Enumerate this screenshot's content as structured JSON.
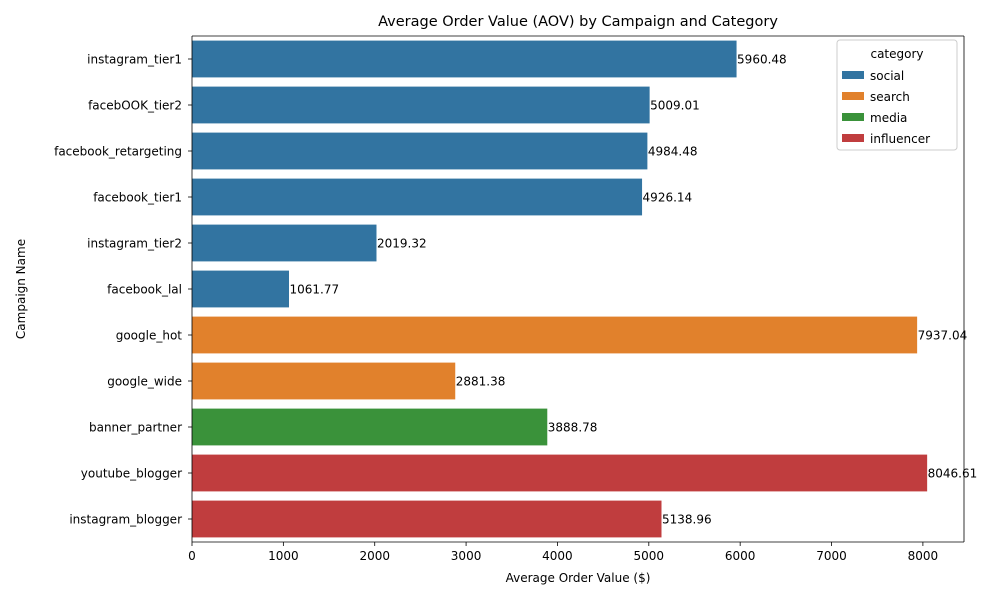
{
  "chart_data": {
    "type": "bar",
    "orientation": "horizontal",
    "title": "Average Order Value (AOV) by Campaign and Category",
    "xlabel": "Average Order Value ($)",
    "ylabel": "Campaign Name",
    "xlim": [
      0,
      8450
    ],
    "xticks": [
      0,
      1000,
      2000,
      3000,
      4000,
      5000,
      6000,
      7000,
      8000
    ],
    "grid": false,
    "legend": {
      "title": "category",
      "placement": "top-right",
      "entries": [
        {
          "name": "social",
          "color": "#3274a1"
        },
        {
          "name": "search",
          "color": "#e1812c"
        },
        {
          "name": "media",
          "color": "#3a923a"
        },
        {
          "name": "influencer",
          "color": "#c03d3e"
        }
      ]
    },
    "bars": [
      {
        "category_label": "instagram_tier1",
        "value": 5960.48,
        "value_label": "5960.48",
        "group": "social"
      },
      {
        "category_label": "facebOOK_tier2",
        "value": 5009.01,
        "value_label": "5009.01",
        "group": "social"
      },
      {
        "category_label": "facebook_retargeting",
        "value": 4984.48,
        "value_label": "4984.48",
        "group": "social"
      },
      {
        "category_label": "facebook_tier1",
        "value": 4926.14,
        "value_label": "4926.14",
        "group": "social"
      },
      {
        "category_label": "instagram_tier2",
        "value": 2019.32,
        "value_label": "2019.32",
        "group": "social"
      },
      {
        "category_label": "facebook_lal",
        "value": 1061.77,
        "value_label": "1061.77",
        "group": "social"
      },
      {
        "category_label": "google_hot",
        "value": 7937.04,
        "value_label": "7937.04",
        "group": "search"
      },
      {
        "category_label": "google_wide",
        "value": 2881.38,
        "value_label": "2881.38",
        "group": "search"
      },
      {
        "category_label": "banner_partner",
        "value": 3888.78,
        "value_label": "3888.78",
        "group": "media"
      },
      {
        "category_label": "youtube_blogger",
        "value": 8046.61,
        "value_label": "8046.61",
        "group": "influencer"
      },
      {
        "category_label": "instagram_blogger",
        "value": 5138.96,
        "value_label": "5138.96",
        "group": "influencer"
      }
    ]
  }
}
